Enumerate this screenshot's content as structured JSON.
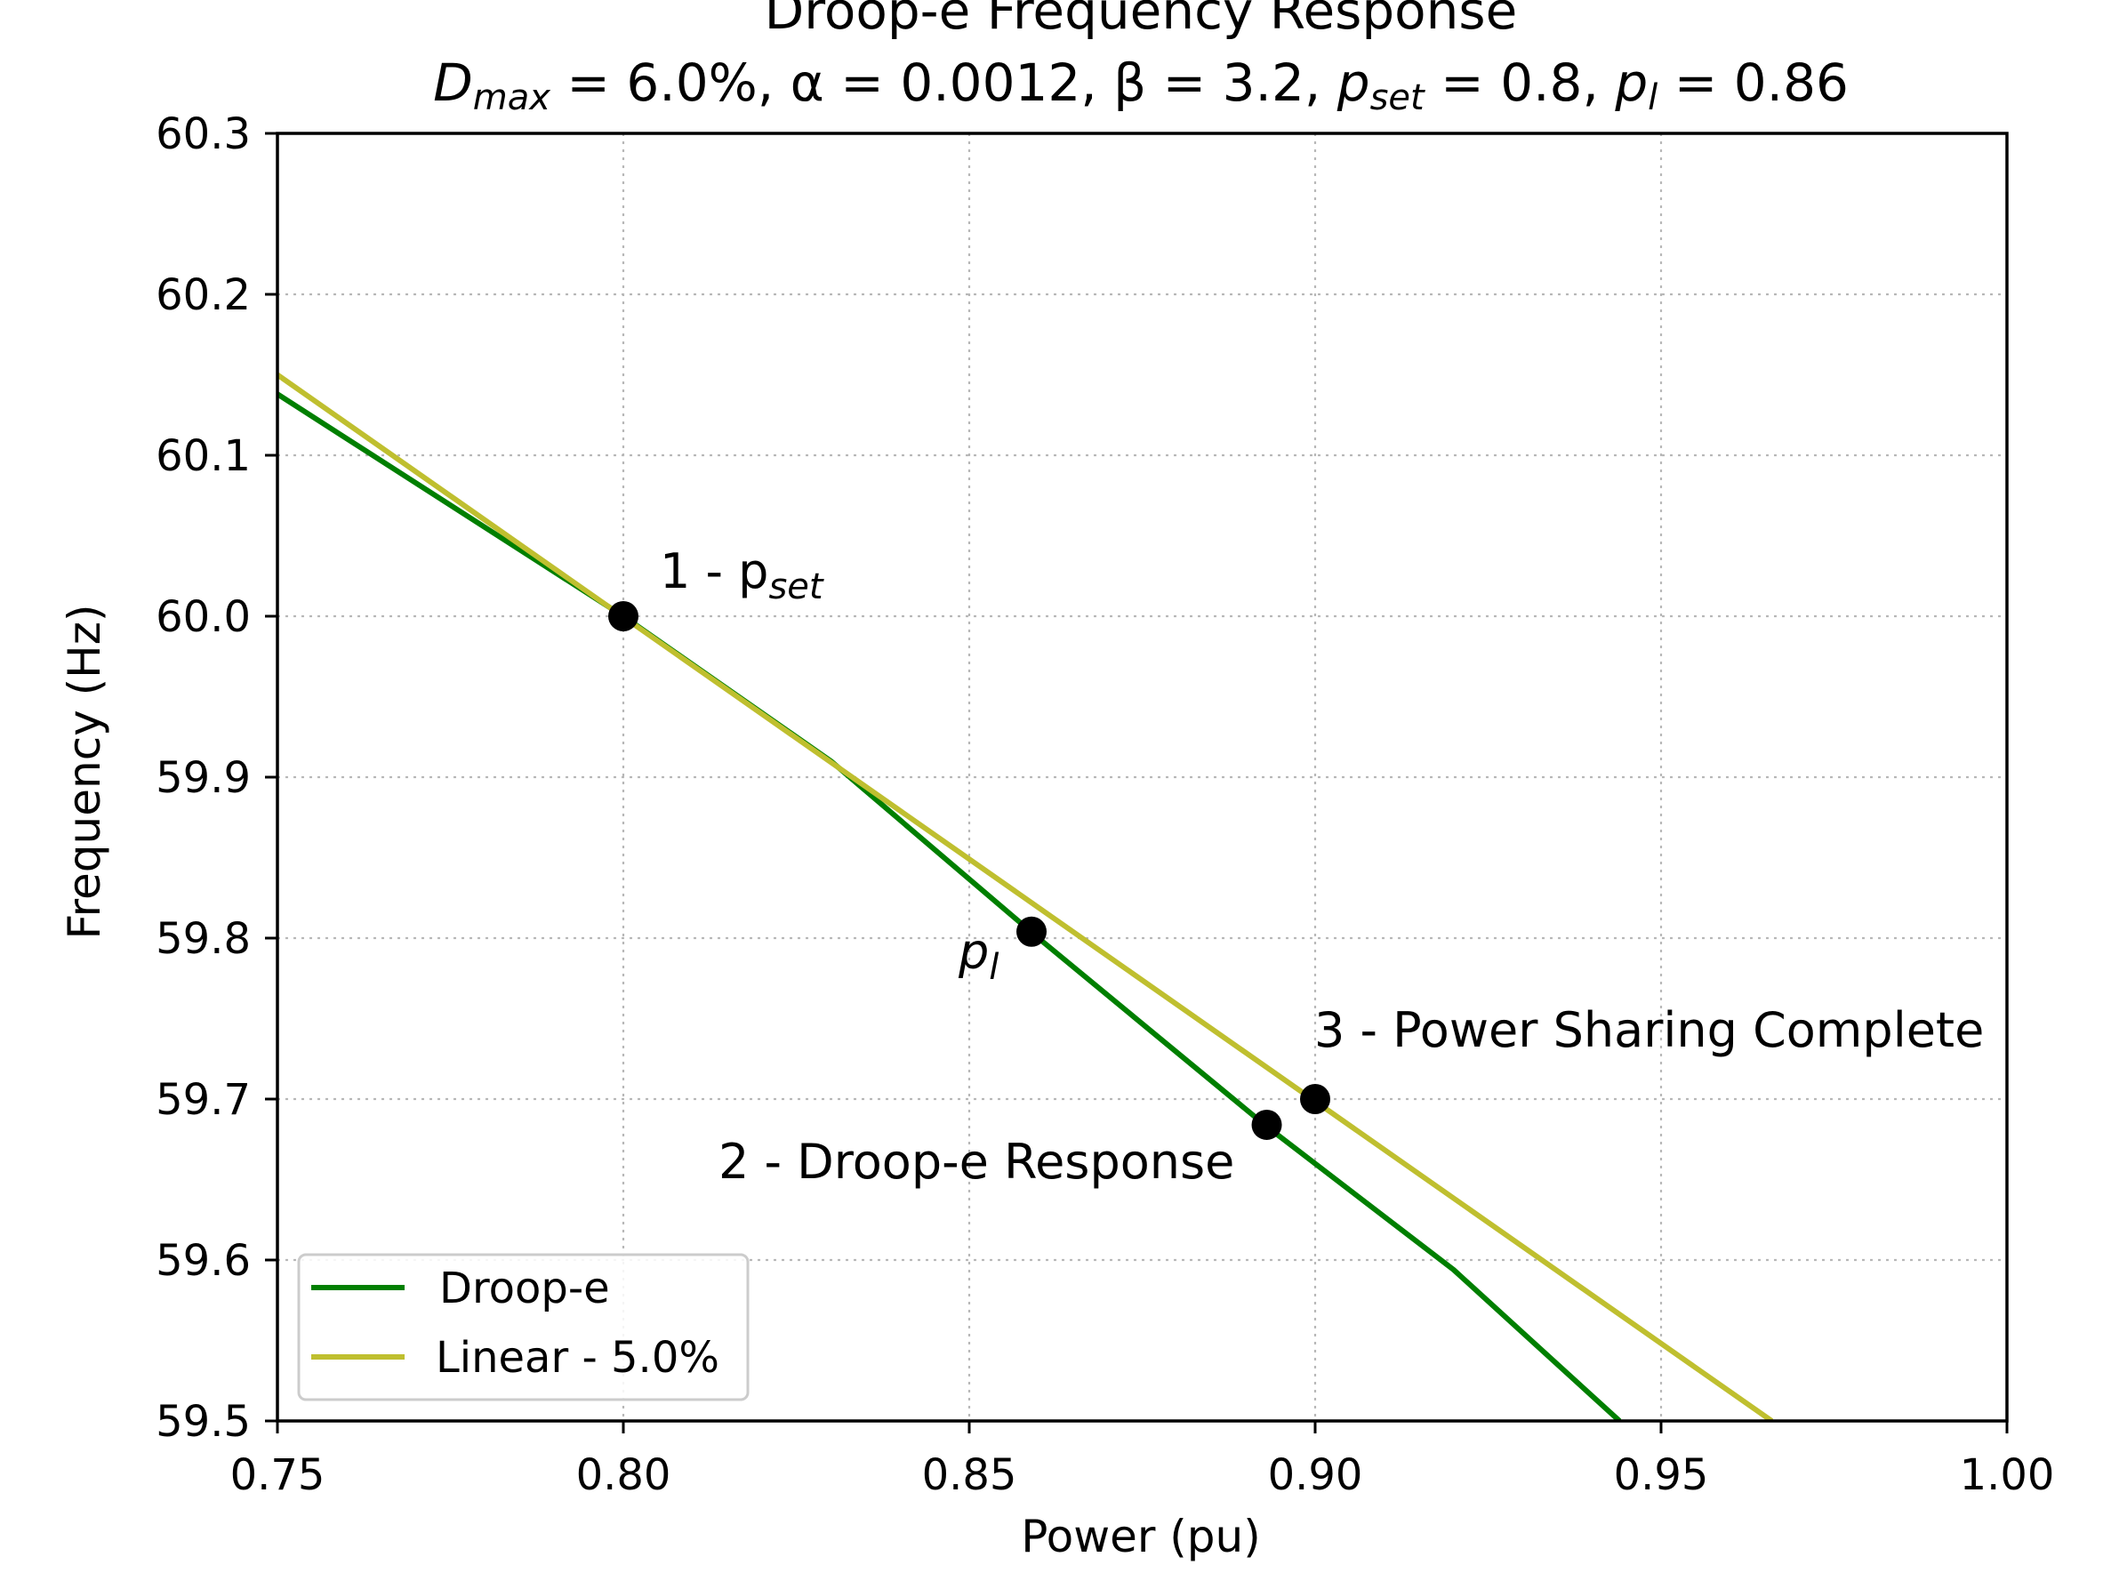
{
  "chart_data": {
    "type": "line",
    "title": "Droop-e Frequency Response",
    "subtitle": {
      "dmax_symbol": "D",
      "dmax_sub": "max",
      "dmax_value": " = 6.0%, ",
      "alpha_text": "α = 0.0012, ",
      "beta_text": "β = 3.2, ",
      "pset_symbol": "p",
      "pset_sub": "set",
      "pset_value": " = 0.8, ",
      "pl_symbol": "p",
      "pl_sub": "l",
      "pl_value": " = 0.86"
    },
    "xlabel": "Power (pu)",
    "ylabel": "Frequency (Hz)",
    "xlim": [
      0.75,
      1.0
    ],
    "ylim": [
      59.5,
      60.3
    ],
    "xticks": [
      0.75,
      0.8,
      0.85,
      0.9,
      0.95,
      1.0
    ],
    "xtick_labels": [
      "0.75",
      "0.80",
      "0.85",
      "0.90",
      "0.95",
      "1.00"
    ],
    "yticks": [
      59.5,
      59.6,
      59.7,
      59.8,
      59.9,
      60.0,
      60.1,
      60.2,
      60.3
    ],
    "ytick_labels": [
      "59.5",
      "59.6",
      "59.7",
      "59.8",
      "59.9",
      "60.0",
      "60.1",
      "60.2",
      "60.3"
    ],
    "grid": true,
    "legend_position": "lower-left",
    "series": [
      {
        "name": "Droop-e",
        "color": "#007f00",
        "x": [
          0.75,
          0.8,
          0.83,
          0.86,
          0.893,
          0.92,
          0.944
        ],
        "y": [
          60.138,
          60.0,
          59.91,
          59.8,
          59.683,
          59.594,
          59.5
        ]
      },
      {
        "name": "Linear - 5.0%",
        "color": "#bfbf2f",
        "x": [
          0.75,
          0.966
        ],
        "y": [
          60.15,
          59.5
        ]
      }
    ],
    "points": [
      {
        "x": 0.8,
        "y": 60.0,
        "label": "1 - p",
        "label_sub": "set",
        "label_pos": "upper-right"
      },
      {
        "x": 0.859,
        "y": 59.804,
        "label": "p",
        "label_sub": "l",
        "label_pos": "left"
      },
      {
        "x": 0.893,
        "y": 59.684,
        "label": "2 - Droop-e Response",
        "label_sub": "",
        "label_pos": "lower-left"
      },
      {
        "x": 0.9,
        "y": 59.7,
        "label": "3 - Power Sharing Complete",
        "label_sub": "",
        "label_pos": "upper-right"
      }
    ]
  }
}
